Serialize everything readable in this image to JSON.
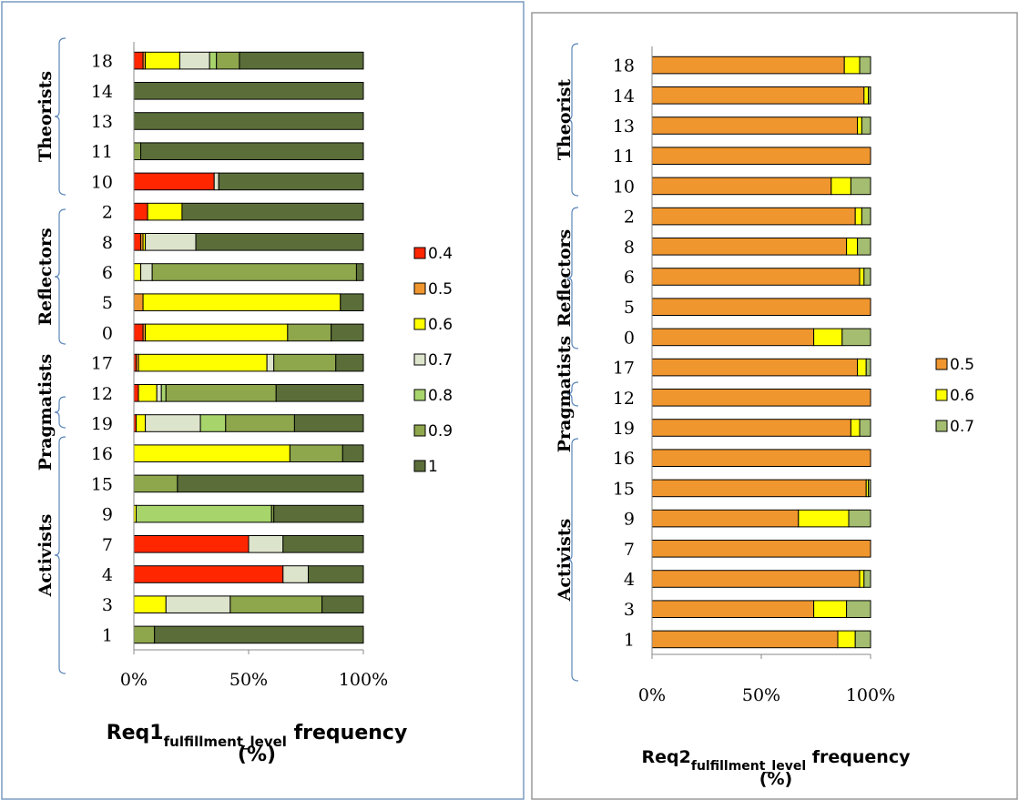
{
  "chart_data": [
    {
      "type": "bar",
      "stacked": true,
      "orientation": "horizontal",
      "title": "Req1",
      "title_subscript": "fulfillment_level",
      "title_suffix": " frequency",
      "title_line2": "(%)",
      "x_ticks": [
        "0%",
        "50%",
        "100%"
      ],
      "xlim": [
        0,
        100
      ],
      "legend_position": "right",
      "colors": [
        "#ff2600",
        "#f0962e",
        "#ffff00",
        "#dde4cc",
        "#a8d46c",
        "#8ea64c",
        "#5b6e3a"
      ],
      "categories": [
        "18",
        "14",
        "13",
        "11",
        "10",
        "2",
        "8",
        "6",
        "5",
        "0",
        "17",
        "12",
        "19",
        "16",
        "15",
        "9",
        "7",
        "4",
        "3",
        "1"
      ],
      "groups": [
        {
          "name": "Theorists",
          "categories": [
            "18",
            "14",
            "13",
            "11",
            "10"
          ]
        },
        {
          "name": "Reflectors",
          "categories": [
            "2",
            "8",
            "6",
            "5",
            "0"
          ]
        },
        {
          "name": "Pragmatists",
          "categories": [
            "17",
            "12",
            "19"
          ]
        },
        {
          "name": "Activists",
          "categories": [
            "16",
            "15",
            "9",
            "7",
            "4",
            "3",
            "1"
          ]
        }
      ],
      "series": [
        {
          "name": "0.4",
          "values": [
            4,
            0,
            0,
            0,
            35,
            6,
            3,
            0,
            0,
            4,
            1,
            2,
            1,
            0,
            0,
            0,
            50,
            65,
            0,
            0
          ]
        },
        {
          "name": "0.5",
          "values": [
            1,
            0,
            0,
            0,
            0,
            0,
            1,
            0,
            4,
            1,
            1,
            0,
            0,
            0,
            0,
            0,
            0,
            0,
            0,
            0
          ]
        },
        {
          "name": "0.6",
          "values": [
            15,
            0,
            0,
            0,
            0,
            15,
            1,
            3,
            86,
            62,
            56,
            8,
            4,
            68,
            0,
            1,
            0,
            0,
            14,
            0
          ]
        },
        {
          "name": "0.7",
          "values": [
            13,
            0,
            0,
            0,
            2,
            0,
            22,
            5,
            0,
            0,
            3,
            2,
            24,
            0,
            0,
            0,
            15,
            11,
            28,
            0
          ]
        },
        {
          "name": "0.8",
          "values": [
            3,
            0,
            0,
            0,
            0,
            0,
            0,
            0,
            0,
            0,
            0,
            2,
            11,
            0,
            0,
            59,
            0,
            0,
            0,
            0
          ]
        },
        {
          "name": "0.9",
          "values": [
            10,
            0,
            0,
            3,
            0,
            0,
            0,
            89,
            0,
            19,
            27,
            48,
            30,
            23,
            19,
            1,
            0,
            0,
            40,
            9
          ]
        },
        {
          "name": "1",
          "values": [
            54,
            100,
            100,
            97,
            63,
            79,
            73,
            3,
            10,
            14,
            12,
            38,
            30,
            9,
            81,
            39,
            35,
            24,
            18,
            91
          ]
        }
      ]
    },
    {
      "type": "bar",
      "stacked": true,
      "orientation": "horizontal",
      "title": "Req2",
      "title_subscript": "fulfillment_level",
      "title_suffix": " frequency",
      "title_line2": "(%)",
      "x_ticks": [
        "0%",
        "50%",
        "100%"
      ],
      "xlim": [
        0,
        100
      ],
      "legend_position": "right",
      "colors": [
        "#f0962e",
        "#ffff00",
        "#a4bd70"
      ],
      "categories": [
        "18",
        "14",
        "13",
        "11",
        "10",
        "2",
        "8",
        "6",
        "5",
        "0",
        "17",
        "12",
        "19",
        "16",
        "15",
        "9",
        "7",
        "4",
        "3",
        "1"
      ],
      "groups": [
        {
          "name": "Theorist",
          "categories": [
            "18",
            "14",
            "13",
            "11",
            "10"
          ]
        },
        {
          "name": "Reflectors",
          "categories": [
            "2",
            "8",
            "6",
            "5",
            "0"
          ]
        },
        {
          "name": "Pragmatists",
          "categories": [
            "17",
            "12"
          ]
        },
        {
          "name": "Activists",
          "categories": [
            "19",
            "16",
            "15",
            "9",
            "7",
            "4",
            "3",
            "1"
          ]
        }
      ],
      "series": [
        {
          "name": "0.5",
          "values": [
            88,
            97,
            94,
            100,
            82,
            93,
            89,
            95,
            100,
            74,
            94,
            100,
            91,
            100,
            98,
            67,
            100,
            95,
            74,
            85
          ]
        },
        {
          "name": "0.6",
          "values": [
            7,
            2,
            2,
            0,
            9,
            3,
            5,
            2,
            0,
            13,
            4,
            0,
            4,
            0,
            1,
            23,
            0,
            2,
            15,
            8
          ]
        },
        {
          "name": "0.7",
          "values": [
            5,
            1,
            4,
            0,
            9,
            4,
            6,
            3,
            0,
            13,
            2,
            0,
            5,
            0,
            1,
            10,
            0,
            3,
            11,
            7
          ]
        }
      ]
    }
  ]
}
